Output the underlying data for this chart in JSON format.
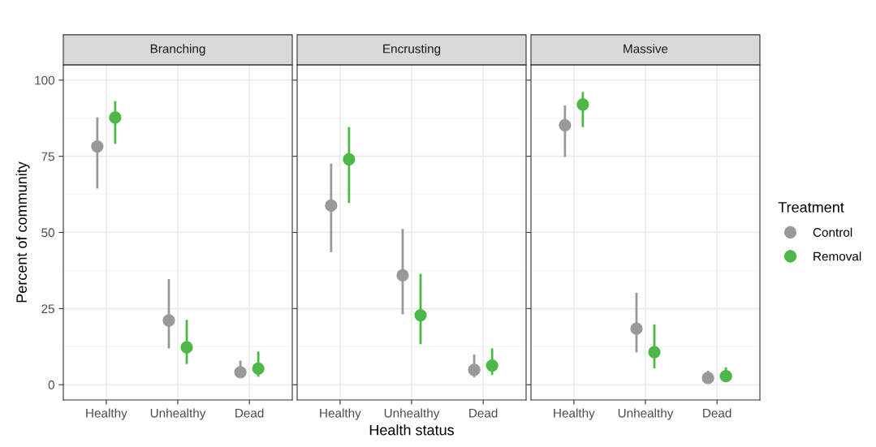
{
  "chart_data": [
    {
      "type": "scatter",
      "title": "Branching",
      "ylabel": "Percent of community",
      "categories": [
        "Healthy",
        "Unhealthy",
        "Dead"
      ],
      "ylim": [
        -5,
        105
      ],
      "yticks": [
        0,
        25,
        50,
        75,
        100
      ],
      "grid": true,
      "marker": "circle",
      "series": [
        {
          "color": "#999999",
          "values": [
            78.2,
            21.1,
            4.1
          ],
          "errors": [
            [
              64.4,
              87.8
            ],
            [
              11.9,
              34.7
            ],
            [
              2.2,
              7.9
            ]
          ]
        },
        {
          "color": "#4cb848",
          "values": [
            87.7,
            12.3,
            5.3
          ],
          "errors": [
            [
              79.1,
              93.1
            ],
            [
              6.8,
              21.3
            ],
            [
              2.6,
              10.9
            ]
          ]
        }
      ]
    },
    {
      "type": "scatter",
      "title": "Encrusting",
      "xlabel": "Health status",
      "categories": [
        "Healthy",
        "Unhealthy",
        "Dead"
      ],
      "ylim": [
        -5,
        105
      ],
      "yticks": [
        0,
        25,
        50,
        75,
        100
      ],
      "tick_labels": "x",
      "grid": true,
      "marker": "circle",
      "series": [
        {
          "color": "#999999",
          "values": [
            58.8,
            35.9,
            4.9
          ],
          "errors": [
            [
              43.5,
              72.6
            ],
            [
              23.1,
              51.1
            ],
            [
              2.4,
              9.9
            ]
          ]
        },
        {
          "color": "#4cb848",
          "values": [
            74.0,
            22.8,
            6.3
          ],
          "errors": [
            [
              59.7,
              84.6
            ],
            [
              13.3,
              36.4
            ],
            [
              3.2,
              11.9
            ]
          ]
        }
      ]
    },
    {
      "type": "scatter",
      "title": "Massive",
      "categories": [
        "Healthy",
        "Unhealthy",
        "Dead"
      ],
      "ylim": [
        -5,
        105
      ],
      "yticks": [
        0,
        25,
        50,
        75,
        100
      ],
      "tick_labels": "x",
      "grid": true,
      "marker": "circle",
      "legend": "right",
      "legend_title": "Treatment",
      "series": [
        {
          "name": "Control",
          "color": "#999999",
          "values": [
            85.2,
            18.4,
            2.2
          ],
          "errors": [
            [
              74.8,
              91.7
            ],
            [
              10.6,
              30.2
            ],
            [
              1.0,
              4.6
            ]
          ]
        },
        {
          "name": "Removal",
          "color": "#4cb848",
          "values": [
            92.0,
            10.7,
            2.8
          ],
          "errors": [
            [
              84.6,
              96.1
            ],
            [
              5.4,
              19.8
            ],
            [
              1.4,
              5.7
            ]
          ]
        }
      ]
    }
  ]
}
